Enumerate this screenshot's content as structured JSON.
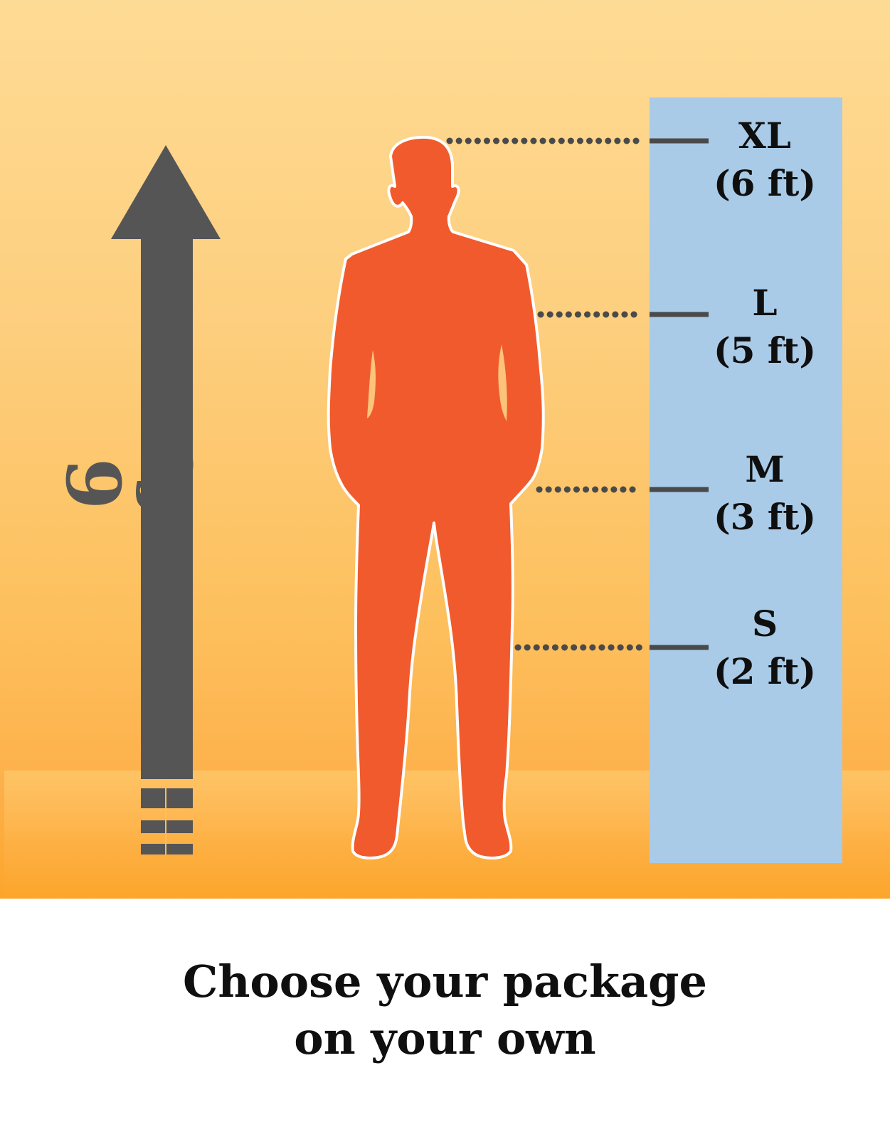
{
  "colors": {
    "background_top": "#fedb94",
    "background_bottom": "#fca52a",
    "panel": "#a9cbe7",
    "silhouette": "#f15a2c",
    "arrow": "#555555",
    "text": "#0f0f0f"
  },
  "height_axis": {
    "label": "6 ft"
  },
  "sizes": [
    {
      "code": "XL",
      "height": "(6 ft)"
    },
    {
      "code": "L",
      "height": "(5 ft)"
    },
    {
      "code": "M",
      "height": "(3 ft)"
    },
    {
      "code": "S",
      "height": "(2 ft)"
    }
  ],
  "caption": {
    "line1": "Choose your package",
    "line2": "on your own"
  }
}
